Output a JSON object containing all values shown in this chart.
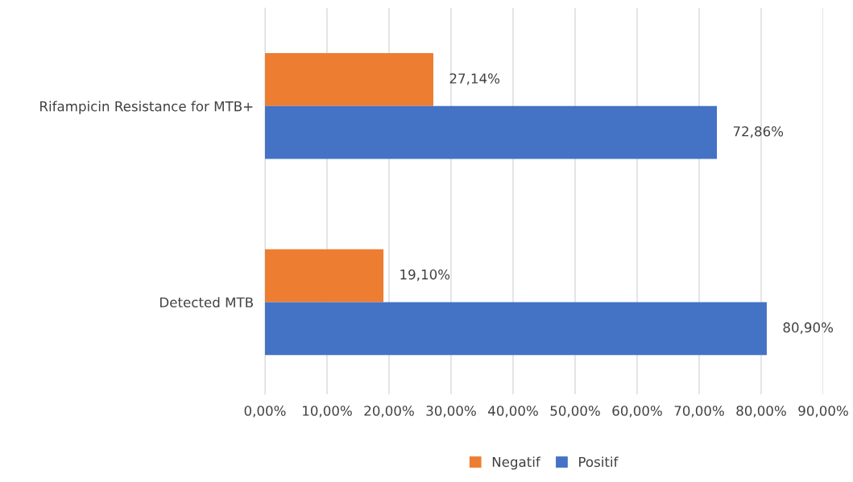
{
  "chart_data": {
    "type": "bar",
    "orientation": "horizontal",
    "categories": [
      "Rifampicin Resistance for MTB+",
      "Detected MTB"
    ],
    "series": [
      {
        "name": "Negatif",
        "color": "#ed7d31",
        "values": [
          27.14,
          19.1
        ],
        "value_labels": [
          "27,14%",
          "19,10%"
        ]
      },
      {
        "name": "Positif",
        "color": "#4472c4",
        "values": [
          72.86,
          80.9
        ],
        "value_labels": [
          "72,86%",
          "80,90%"
        ]
      }
    ],
    "xlim": [
      0,
      90
    ],
    "xticks": [
      {
        "value": 0,
        "label": "0,00%"
      },
      {
        "value": 10,
        "label": "10,00%"
      },
      {
        "value": 20,
        "label": "20,00%"
      },
      {
        "value": 30,
        "label": "30,00%"
      },
      {
        "value": 40,
        "label": "40,00%"
      },
      {
        "value": 50,
        "label": "50,00%"
      },
      {
        "value": 60,
        "label": "60,00%"
      },
      {
        "value": 70,
        "label": "70,00%"
      },
      {
        "value": 80,
        "label": "80,00%"
      },
      {
        "value": 90,
        "label": "90,00%"
      }
    ],
    "grid": "x",
    "legend": "bottom"
  }
}
